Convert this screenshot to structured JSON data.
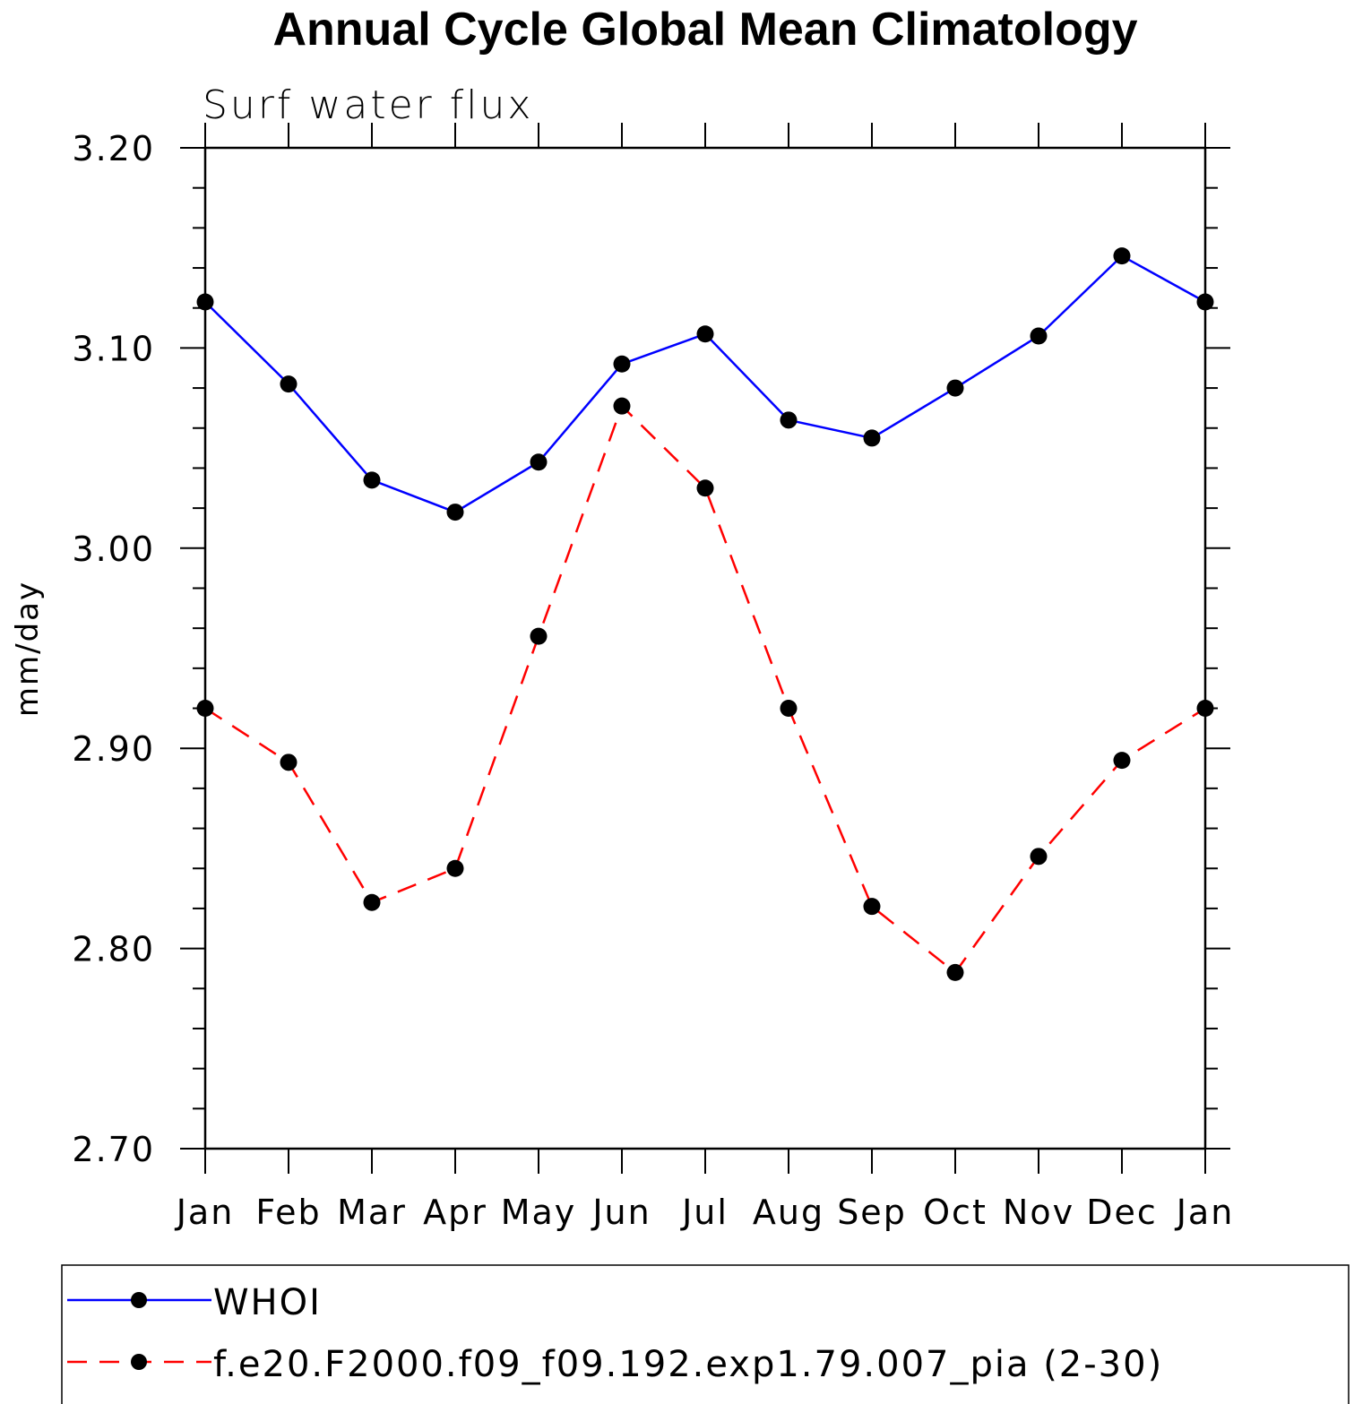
{
  "chart_data": {
    "type": "line",
    "title": "Annual Cycle Global Mean Climatology",
    "subtitle": "Surf water flux",
    "xlabel": "",
    "ylabel": "mm/day",
    "categories": [
      "Jan",
      "Feb",
      "Mar",
      "Apr",
      "May",
      "Jun",
      "Jul",
      "Aug",
      "Sep",
      "Oct",
      "Nov",
      "Dec",
      "Jan"
    ],
    "ylim": [
      2.7,
      3.2
    ],
    "yticks": [
      "3.20",
      "3.10",
      "3.00",
      "2.90",
      "2.80",
      "2.70"
    ],
    "ytick_values": [
      3.2,
      3.1,
      3.0,
      2.9,
      2.8,
      2.7
    ],
    "series": [
      {
        "name": "WHOI",
        "color": "#0000ff",
        "line_style": "solid",
        "marker": "filled-circle",
        "values": [
          3.123,
          3.082,
          3.034,
          3.018,
          3.043,
          3.092,
          3.107,
          3.064,
          3.055,
          3.08,
          3.106,
          3.146,
          3.123
        ]
      },
      {
        "name": "f.e20.F2000.f09_f09.192.exp1.79.007_pia (2-30)",
        "color": "#ff0000",
        "line_style": "dashed",
        "marker": "filled-circle",
        "values": [
          2.92,
          2.893,
          2.823,
          2.84,
          2.956,
          3.071,
          3.03,
          2.92,
          2.821,
          2.788,
          2.846,
          2.894,
          2.92
        ]
      }
    ],
    "grid": false,
    "legend_position": "bottom"
  }
}
